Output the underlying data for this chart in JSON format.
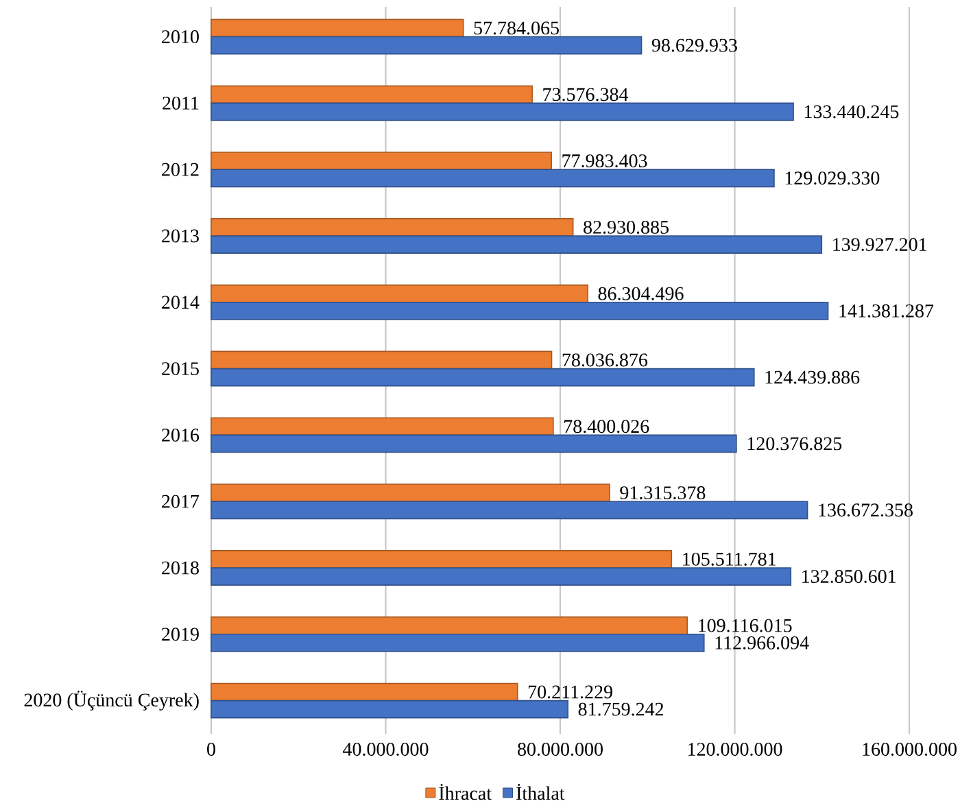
{
  "chart_data": {
    "type": "bar",
    "orientation": "horizontal",
    "categories": [
      "2010",
      "2011",
      "2012",
      "2013",
      "2014",
      "2015",
      "2016",
      "2017",
      "2018",
      "2019",
      "2020 (Üçüncü Çeyrek)"
    ],
    "series": [
      {
        "name": "İhracat",
        "color": "#ed7d31",
        "values": [
          57784065,
          73576384,
          77983403,
          82930885,
          86304496,
          78036876,
          78400026,
          91315378,
          105511781,
          109116015,
          70211229
        ],
        "value_labels": [
          "57.784.065",
          "73.576.384",
          "77.983.403",
          "82.930.885",
          "86.304.496",
          "78.036.876",
          "78.400.026",
          "91.315.378",
          "105.511.781",
          "109.116.015",
          "70.211.229"
        ]
      },
      {
        "name": "İthalat",
        "color": "#4472c4",
        "values": [
          98629933,
          133440245,
          129029330,
          139927201,
          141381287,
          124439886,
          120376825,
          136672358,
          132850601,
          112966094,
          81759242
        ],
        "value_labels": [
          "98.629.933",
          "133.440.245",
          "129.029.330",
          "139.927.201",
          "141.381.287",
          "124.439.886",
          "120.376.825",
          "136.672.358",
          "132.850.601",
          "112.966.094",
          "81.759.242"
        ]
      }
    ],
    "xlim": [
      0,
      160000000
    ],
    "xticks": [
      0,
      {
        "value": 40000000,
        "label": "40.000.000"
      },
      {
        "value": 80000000,
        "label": "80.000.000"
      },
      {
        "value": 120000000,
        "label": "120.000.000"
      },
      {
        "value": 160000000,
        "label": "160.000.000"
      }
    ],
    "grid": "x",
    "legend": "bottom"
  }
}
